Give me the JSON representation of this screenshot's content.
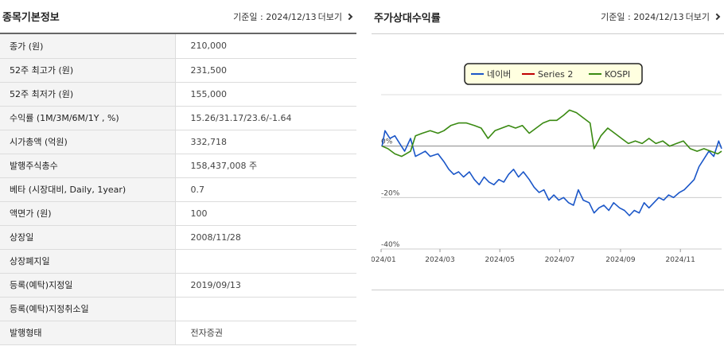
{
  "info": {
    "title": "종목기본정보",
    "date_label": "기준일 : 2024/12/13",
    "more": "더보기",
    "rows": [
      {
        "label": "종가 (원)",
        "value": "210,000"
      },
      {
        "label": "52주 최고가 (원)",
        "value": "231,500"
      },
      {
        "label": "52주 최저가 (원)",
        "value": "155,000"
      },
      {
        "label": "수익률 (1M/3M/6M/1Y , %)",
        "value": "15.26/31.17/23.6/-1.64"
      },
      {
        "label": "시가총액 (억원)",
        "value": "332,718"
      },
      {
        "label": "발행주식총수",
        "value": "158,437,008 주"
      },
      {
        "label": "베타 (시장대비, Daily, 1year)",
        "value": "0.7"
      },
      {
        "label": "액면가 (원)",
        "value": "100"
      },
      {
        "label": "상장일",
        "value": "2008/11/28"
      },
      {
        "label": "상장폐지일",
        "value": ""
      },
      {
        "label": "등록(예탁)지정일",
        "value": "2019/09/13"
      },
      {
        "label": "등록(예탁)지정취소일",
        "value": ""
      },
      {
        "label": "발행형태",
        "value": "전자증권"
      }
    ]
  },
  "chart_panel": {
    "title": "주가상대수익률",
    "date_label": "기준일 : 2024/12/13",
    "more": "더보기"
  },
  "chart_data": {
    "type": "line",
    "title": "",
    "xlabel": "",
    "ylabel": "",
    "y_ticks": [
      {
        "value": 0,
        "label": "0%"
      },
      {
        "value": -20,
        "label": "-20%"
      },
      {
        "value": -40,
        "label": "-40%"
      }
    ],
    "ylim": [
      -40,
      20
    ],
    "xlim": [
      "2024-01-01",
      "2024-12-13"
    ],
    "x_ticks": [
      {
        "date": "2024-01-01",
        "label": "2024/01"
      },
      {
        "date": "2024-03-01",
        "label": "2024/03"
      },
      {
        "date": "2024-05-01",
        "label": "2024/05"
      },
      {
        "date": "2024-07-01",
        "label": "2024/07"
      },
      {
        "date": "2024-09-01",
        "label": "2024/09"
      },
      {
        "date": "2024-11-01",
        "label": "2024/11"
      }
    ],
    "legend_position": "top",
    "series": [
      {
        "name": "네이버",
        "color": "#1a56c8",
        "points": [
          [
            "2024-01-02",
            0
          ],
          [
            "2024-01-05",
            6
          ],
          [
            "2024-01-10",
            3
          ],
          [
            "2024-01-15",
            4
          ],
          [
            "2024-01-20",
            1
          ],
          [
            "2024-01-25",
            -2
          ],
          [
            "2024-01-31",
            3
          ],
          [
            "2024-02-05",
            -4
          ],
          [
            "2024-02-10",
            -3
          ],
          [
            "2024-02-15",
            -2
          ],
          [
            "2024-02-20",
            -4
          ],
          [
            "2024-02-28",
            -3
          ],
          [
            "2024-03-05",
            -6
          ],
          [
            "2024-03-10",
            -9
          ],
          [
            "2024-03-15",
            -11
          ],
          [
            "2024-03-20",
            -10
          ],
          [
            "2024-03-25",
            -12
          ],
          [
            "2024-03-31",
            -10
          ],
          [
            "2024-04-05",
            -13
          ],
          [
            "2024-04-10",
            -15
          ],
          [
            "2024-04-15",
            -12
          ],
          [
            "2024-04-20",
            -14
          ],
          [
            "2024-04-25",
            -15
          ],
          [
            "2024-04-30",
            -13
          ],
          [
            "2024-05-05",
            -14
          ],
          [
            "2024-05-10",
            -11
          ],
          [
            "2024-05-15",
            -9
          ],
          [
            "2024-05-20",
            -12
          ],
          [
            "2024-05-25",
            -10
          ],
          [
            "2024-05-31",
            -13
          ],
          [
            "2024-06-05",
            -16
          ],
          [
            "2024-06-10",
            -18
          ],
          [
            "2024-06-15",
            -17
          ],
          [
            "2024-06-20",
            -21
          ],
          [
            "2024-06-25",
            -19
          ],
          [
            "2024-06-30",
            -21
          ],
          [
            "2024-07-05",
            -20
          ],
          [
            "2024-07-10",
            -22
          ],
          [
            "2024-07-15",
            -23
          ],
          [
            "2024-07-20",
            -17
          ],
          [
            "2024-07-25",
            -21
          ],
          [
            "2024-07-31",
            -22
          ],
          [
            "2024-08-05",
            -26
          ],
          [
            "2024-08-10",
            -24
          ],
          [
            "2024-08-15",
            -23
          ],
          [
            "2024-08-20",
            -25
          ],
          [
            "2024-08-25",
            -22
          ],
          [
            "2024-08-31",
            -24
          ],
          [
            "2024-09-05",
            -25
          ],
          [
            "2024-09-10",
            -27
          ],
          [
            "2024-09-15",
            -25
          ],
          [
            "2024-09-20",
            -26
          ],
          [
            "2024-09-25",
            -22
          ],
          [
            "2024-09-30",
            -24
          ],
          [
            "2024-10-05",
            -22
          ],
          [
            "2024-10-10",
            -20
          ],
          [
            "2024-10-15",
            -21
          ],
          [
            "2024-10-20",
            -19
          ],
          [
            "2024-10-25",
            -20
          ],
          [
            "2024-10-31",
            -18
          ],
          [
            "2024-11-05",
            -17
          ],
          [
            "2024-11-10",
            -15
          ],
          [
            "2024-11-15",
            -13
          ],
          [
            "2024-11-20",
            -8
          ],
          [
            "2024-11-25",
            -5
          ],
          [
            "2024-11-30",
            -2
          ],
          [
            "2024-12-05",
            -4
          ],
          [
            "2024-12-10",
            2
          ],
          [
            "2024-12-13",
            -1
          ]
        ]
      },
      {
        "name": "Series 2",
        "color": "#c00000",
        "points": []
      },
      {
        "name": "KOSPI",
        "color": "#3a8a12",
        "points": [
          [
            "2024-01-02",
            0
          ],
          [
            "2024-01-08",
            -1
          ],
          [
            "2024-01-15",
            -3
          ],
          [
            "2024-01-22",
            -4
          ],
          [
            "2024-01-31",
            -2
          ],
          [
            "2024-02-05",
            4
          ],
          [
            "2024-02-12",
            5
          ],
          [
            "2024-02-20",
            6
          ],
          [
            "2024-02-28",
            5
          ],
          [
            "2024-03-05",
            6
          ],
          [
            "2024-03-12",
            8
          ],
          [
            "2024-03-20",
            9
          ],
          [
            "2024-03-28",
            9
          ],
          [
            "2024-04-05",
            8
          ],
          [
            "2024-04-12",
            7
          ],
          [
            "2024-04-19",
            3
          ],
          [
            "2024-04-26",
            6
          ],
          [
            "2024-05-03",
            7
          ],
          [
            "2024-05-10",
            8
          ],
          [
            "2024-05-17",
            7
          ],
          [
            "2024-05-24",
            8
          ],
          [
            "2024-05-31",
            5
          ],
          [
            "2024-06-07",
            7
          ],
          [
            "2024-06-14",
            9
          ],
          [
            "2024-06-21",
            10
          ],
          [
            "2024-06-28",
            10
          ],
          [
            "2024-07-05",
            12
          ],
          [
            "2024-07-11",
            14
          ],
          [
            "2024-07-18",
            13
          ],
          [
            "2024-07-25",
            11
          ],
          [
            "2024-08-01",
            9
          ],
          [
            "2024-08-05",
            -1
          ],
          [
            "2024-08-12",
            4
          ],
          [
            "2024-08-19",
            7
          ],
          [
            "2024-08-26",
            5
          ],
          [
            "2024-09-02",
            3
          ],
          [
            "2024-09-09",
            1
          ],
          [
            "2024-09-16",
            2
          ],
          [
            "2024-09-23",
            1
          ],
          [
            "2024-09-30",
            3
          ],
          [
            "2024-10-07",
            1
          ],
          [
            "2024-10-14",
            2
          ],
          [
            "2024-10-21",
            0
          ],
          [
            "2024-10-28",
            1
          ],
          [
            "2024-11-04",
            2
          ],
          [
            "2024-11-11",
            -1
          ],
          [
            "2024-11-18",
            -2
          ],
          [
            "2024-11-25",
            -1
          ],
          [
            "2024-12-02",
            -2
          ],
          [
            "2024-12-09",
            -3
          ],
          [
            "2024-12-13",
            -2
          ]
        ]
      }
    ]
  }
}
